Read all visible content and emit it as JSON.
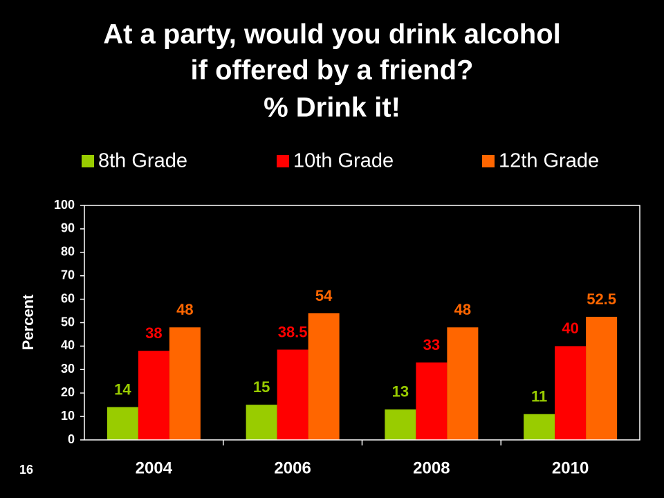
{
  "chart_data": {
    "type": "bar",
    "title_lines": [
      "At a party, would you drink alcohol",
      "if offered by a friend?",
      "% Drink it!"
    ],
    "y_label": "Percent",
    "categories": [
      "2004",
      "2006",
      "2008",
      "2010"
    ],
    "series": [
      {
        "name": "8th Grade",
        "color": "#99cc00",
        "values": [
          14,
          15,
          13,
          11
        ]
      },
      {
        "name": "10th Grade",
        "color": "#ff0000",
        "values": [
          38,
          38.5,
          33,
          40
        ]
      },
      {
        "name": "12th Grade",
        "color": "#ff6600",
        "values": [
          48,
          54,
          48,
          52.5
        ]
      }
    ],
    "ylim": [
      0,
      100
    ],
    "yticks": [
      0,
      10,
      20,
      30,
      40,
      50,
      60,
      70,
      80,
      90,
      100
    ],
    "legend": "top",
    "page_number": "16"
  }
}
